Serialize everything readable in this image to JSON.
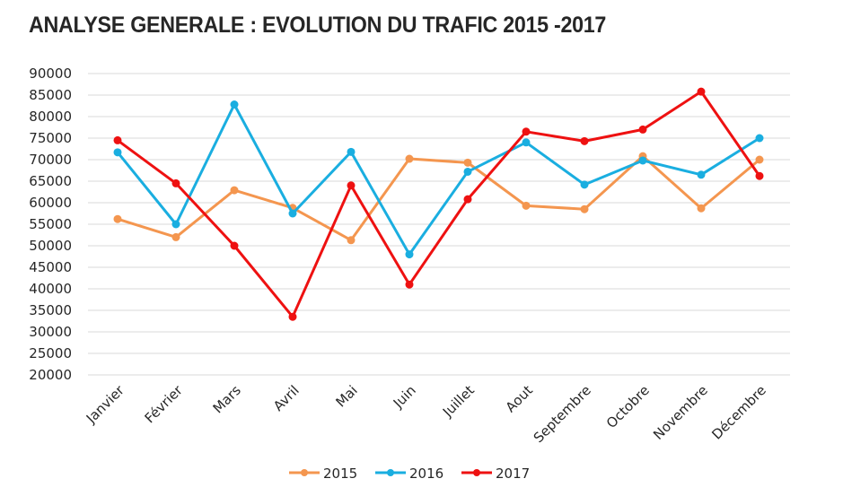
{
  "chart_data": {
    "type": "line",
    "title": "ANALYSE GENERALE : EVOLUTION DU TRAFIC 2015 -2017",
    "xlabel": "",
    "ylabel": "",
    "categories": [
      "Janvier",
      "Février",
      "Mars",
      "Avril",
      "Mai",
      "Juin",
      "Juillet",
      "Aout",
      "Septembre",
      "Octobre",
      "Novembre",
      "Décembre"
    ],
    "ylim": [
      20000,
      90000
    ],
    "yticks": [
      "20000",
      "25000",
      "30000",
      "35000",
      "40000",
      "45000",
      "50000",
      "55000",
      "60000",
      "65000",
      "70000",
      "75000",
      "80000",
      "85000",
      "90000"
    ],
    "grid": true,
    "legend_position": "bottom",
    "series": [
      {
        "name": "2015",
        "color": "#F4964F",
        "values": [
          56200,
          52000,
          62900,
          58800,
          51300,
          70200,
          69300,
          59300,
          58500,
          70800,
          58700,
          70000
        ]
      },
      {
        "name": "2016",
        "color": "#1AAEE0",
        "values": [
          71700,
          55000,
          82800,
          57500,
          71800,
          48000,
          67200,
          74000,
          64200,
          69800,
          66500,
          75000
        ]
      },
      {
        "name": "2017",
        "color": "#EE1111",
        "values": [
          74500,
          64500,
          50000,
          33500,
          64000,
          41000,
          60800,
          76500,
          74300,
          77000,
          85800,
          66200
        ]
      }
    ]
  }
}
